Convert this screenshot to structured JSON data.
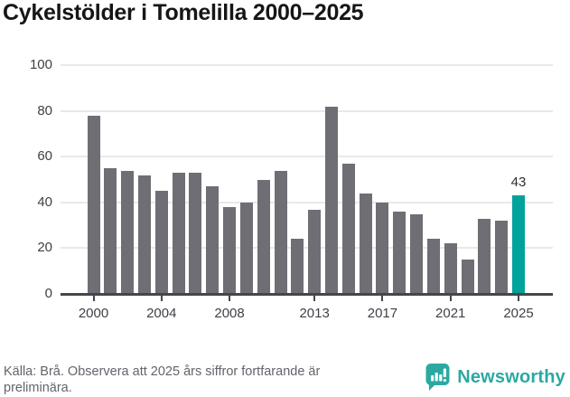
{
  "header": {
    "title": "Cykelstölder i Tomelilla 2000–2025"
  },
  "chart_data": {
    "type": "bar",
    "title": "Cykelstölder i Tomelilla 2000–2025",
    "x": [
      2000,
      2001,
      2002,
      2003,
      2004,
      2005,
      2006,
      2007,
      2008,
      2009,
      2010,
      2011,
      2012,
      2013,
      2014,
      2015,
      2016,
      2017,
      2018,
      2019,
      2020,
      2021,
      2022,
      2023,
      2024,
      2025
    ],
    "values": [
      78,
      55,
      54,
      52,
      45,
      53,
      53,
      47,
      38,
      40,
      50,
      54,
      24,
      37,
      82,
      57,
      44,
      40,
      36,
      35,
      24,
      22,
      15,
      33,
      32,
      43
    ],
    "highlight_year": 2025,
    "highlight_value_label": "43",
    "ylim": [
      0,
      100
    ],
    "yticks": [
      0,
      20,
      40,
      60,
      80,
      100
    ],
    "xtick_years": [
      2000,
      2004,
      2008,
      2013,
      2017,
      2021,
      2025
    ],
    "xtick_labels": [
      "2000",
      "2004",
      "2008",
      "2013",
      "2017",
      "2021",
      "2025"
    ],
    "grid": true,
    "legend": "none",
    "bar_color": "#6e6e74",
    "highlight_color": "#00a39b"
  },
  "footer": {
    "source_text": "Källa: Brå. Observera att 2025 års siffror fortfarande är preliminära.",
    "logo_text": "Newsworthy",
    "logo_color": "#2ba9a1"
  }
}
